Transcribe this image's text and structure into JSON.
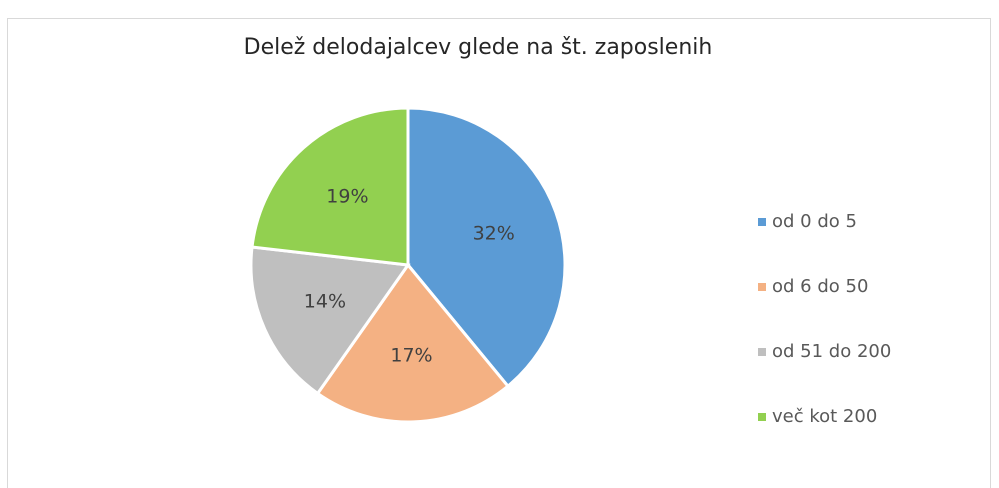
{
  "chart_data": {
    "type": "pie",
    "title": "Delež delodajalcev glede na št. zaposlenih",
    "categories": [
      "od 0 do 5",
      "od 6 do 50",
      "od 51 do 200",
      "več kot 200"
    ],
    "values": [
      32,
      17,
      14,
      19
    ],
    "value_labels": [
      "32%",
      "17%",
      "14%",
      "19%"
    ],
    "colors": [
      "#5b9bd5",
      "#f4b183",
      "#bfbfbf",
      "#92d050"
    ],
    "legend": "right"
  }
}
